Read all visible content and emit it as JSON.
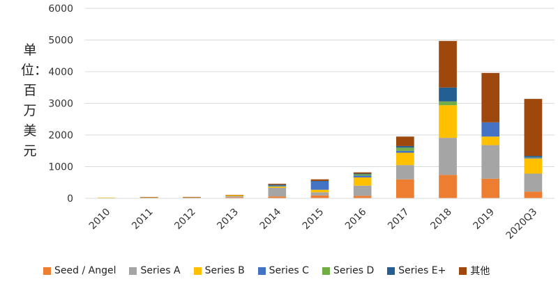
{
  "chart_data": {
    "type": "bar",
    "stacked": true,
    "title": "",
    "ylabel": "单位：百万美元",
    "xlabel": "",
    "ylim": [
      0,
      6000
    ],
    "yticks": [
      0,
      1000,
      2000,
      3000,
      4000,
      5000,
      6000
    ],
    "grid": true,
    "legend_position": "bottom",
    "categories": [
      "2010",
      "2011",
      "2012",
      "2013",
      "2014",
      "2015",
      "2016",
      "2017",
      "2018",
      "2019",
      "2020Q3"
    ],
    "series": [
      {
        "name": "Seed / Angel",
        "color": "#ED7D31",
        "values": [
          15,
          20,
          20,
          30,
          60,
          90,
          80,
          600,
          740,
          620,
          210
        ]
      },
      {
        "name": "Series A",
        "color": "#A5A5A5",
        "values": [
          5,
          10,
          10,
          40,
          270,
          100,
          320,
          450,
          1170,
          1060,
          570
        ]
      },
      {
        "name": "Series B",
        "color": "#FFC000",
        "values": [
          5,
          5,
          10,
          30,
          40,
          80,
          260,
          390,
          1030,
          270,
          480
        ]
      },
      {
        "name": "Series C",
        "color": "#4472C4",
        "values": [
          0,
          0,
          0,
          0,
          20,
          260,
          60,
          60,
          0,
          450,
          30
        ]
      },
      {
        "name": "Series D",
        "color": "#70AD47",
        "values": [
          0,
          0,
          0,
          0,
          10,
          0,
          40,
          100,
          120,
          0,
          10
        ]
      },
      {
        "name": "Series E+",
        "color": "#255E91",
        "values": [
          0,
          0,
          0,
          0,
          30,
          20,
          20,
          50,
          440,
          0,
          40
        ]
      },
      {
        "name": "其他",
        "color": "#9E480E",
        "values": [
          0,
          5,
          5,
          10,
          30,
          50,
          40,
          300,
          1470,
          1560,
          1800
        ]
      }
    ]
  }
}
